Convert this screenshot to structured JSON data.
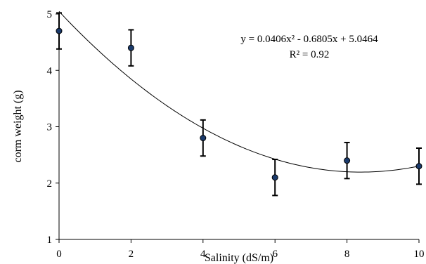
{
  "chart_data": {
    "type": "scatter",
    "title": "",
    "xlabel": "Salinity (dS/m)",
    "ylabel": "corm weight  (g)",
    "xlim": [
      0,
      10
    ],
    "ylim": [
      1,
      5
    ],
    "xticks": [
      "0",
      "2",
      "4",
      "6",
      "8",
      "10"
    ],
    "yticks": [
      "1",
      "2",
      "3",
      "4",
      "5"
    ],
    "grid": false,
    "legend": "none",
    "series": [
      {
        "x": [
          0,
          2,
          4,
          6,
          8,
          10
        ],
        "y": [
          4.7,
          4.4,
          2.8,
          2.1,
          2.4,
          2.3
        ],
        "error": [
          0.32,
          0.32,
          0.32,
          0.32,
          0.32,
          0.32
        ],
        "marker_color": "#1a3a6b"
      }
    ],
    "trendline": {
      "type": "polynomial",
      "coefficients": {
        "a": 0.0406,
        "b": -0.6805,
        "c": 5.0464
      },
      "equation_label": "y = 0.0406x² - 0.6805x + 5.0464",
      "r2_label": "R² = 0.92"
    }
  }
}
